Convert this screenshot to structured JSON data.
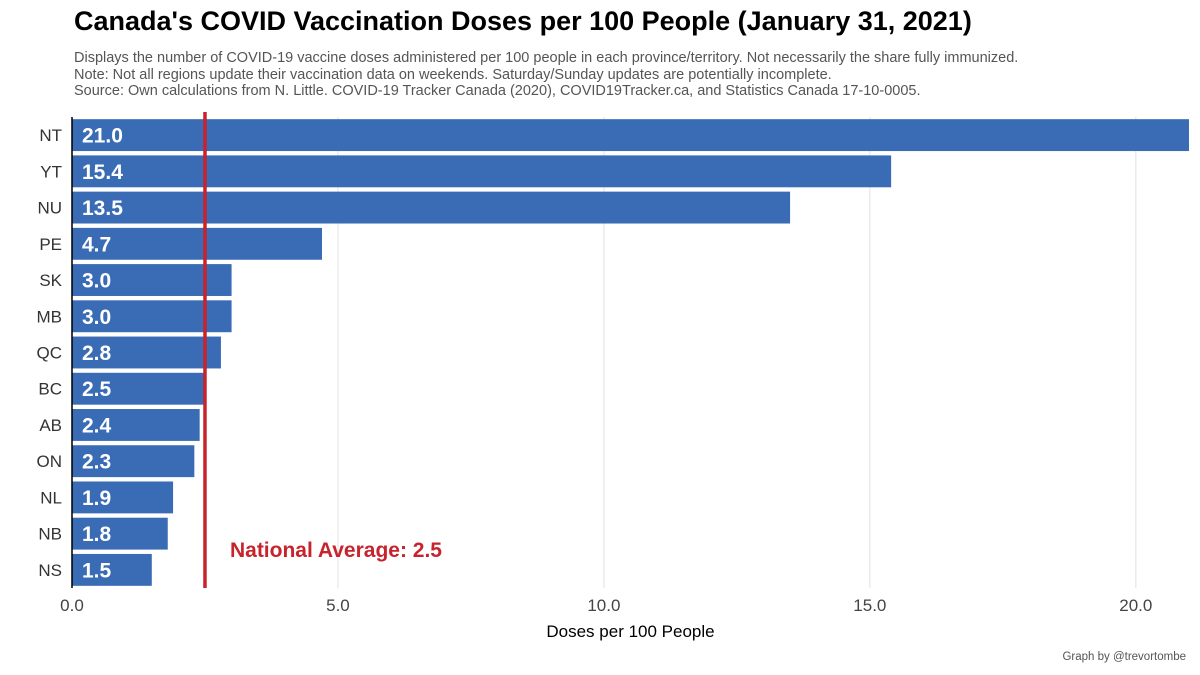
{
  "title": "Canada's COVID Vaccination Doses per 100 People (January 31, 2021)",
  "subtitle_lines": [
    "Displays the number of COVID-19 vaccine doses administered per 100 people in each province/territory. Not necessarily the share fully immunized.",
    "Note: Not all regions update their vaccination data on weekends. Saturday/Sunday updates are potentially incomplete.",
    "Source: Own calculations from N. Little. COVID-19 Tracker Canada (2020), COVID19Tracker.ca, and Statistics Canada 17-10-0005."
  ],
  "caption": "Graph by @trevortombe",
  "chart_data": {
    "type": "bar",
    "orientation": "horizontal",
    "categories": [
      "NT",
      "YT",
      "NU",
      "PE",
      "SK",
      "MB",
      "QC",
      "BC",
      "AB",
      "ON",
      "NL",
      "NB",
      "NS"
    ],
    "values": [
      21.0,
      15.4,
      13.5,
      4.7,
      3.0,
      3.0,
      2.8,
      2.5,
      2.4,
      2.3,
      1.9,
      1.8,
      1.5
    ],
    "value_labels": [
      "21.0",
      "15.4",
      "13.5",
      "4.7",
      "3.0",
      "3.0",
      "2.8",
      "2.5",
      "2.4",
      "2.3",
      "1.9",
      "1.8",
      "1.5"
    ],
    "xlabel": "Doses per 100 People",
    "ylabel": "",
    "xlim": [
      0,
      21
    ],
    "xticks": [
      0,
      5,
      10,
      15,
      20
    ],
    "xtick_labels": [
      "0.0",
      "5.0",
      "10.0",
      "15.0",
      "20.0"
    ],
    "grid": true,
    "reference_line": {
      "value": 2.5,
      "label": "National Average: 2.5"
    }
  },
  "colors": {
    "bar": "#3A6BB5",
    "reference_line": "#C8232C",
    "grid": "#E6E6E6",
    "bar_label": "#FFFFFF"
  }
}
